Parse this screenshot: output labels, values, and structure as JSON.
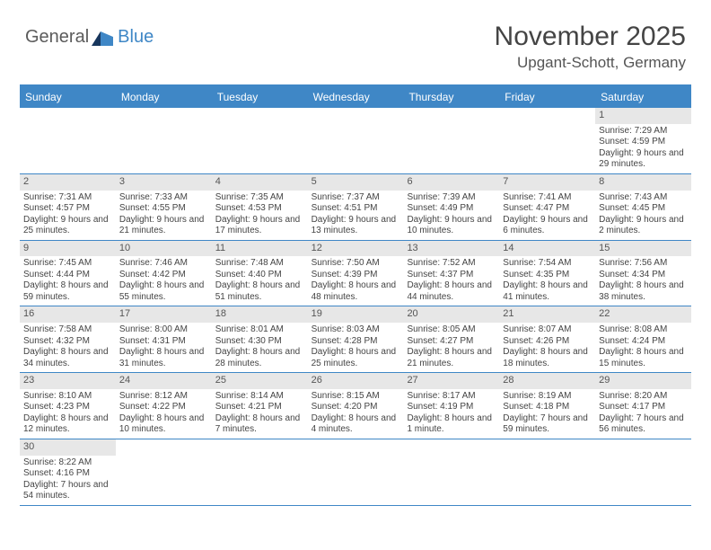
{
  "logo": {
    "textLeft": "General",
    "textRight": "Blue"
  },
  "title": "November 2025",
  "location": "Upgant-Schott, Germany",
  "colors": {
    "accent": "#3f87c6",
    "headerBg": "#3f87c6",
    "headerText": "#ffffff",
    "dayBarBg": "#e7e7e7",
    "bodyText": "#444444",
    "rowBorder": "#3f87c6"
  },
  "weekdays": [
    "Sunday",
    "Monday",
    "Tuesday",
    "Wednesday",
    "Thursday",
    "Friday",
    "Saturday"
  ],
  "weeks": [
    [
      null,
      null,
      null,
      null,
      null,
      null,
      {
        "n": "1",
        "sunrise": "Sunrise: 7:29 AM",
        "sunset": "Sunset: 4:59 PM",
        "daylight": "Daylight: 9 hours and 29 minutes."
      }
    ],
    [
      {
        "n": "2",
        "sunrise": "Sunrise: 7:31 AM",
        "sunset": "Sunset: 4:57 PM",
        "daylight": "Daylight: 9 hours and 25 minutes."
      },
      {
        "n": "3",
        "sunrise": "Sunrise: 7:33 AM",
        "sunset": "Sunset: 4:55 PM",
        "daylight": "Daylight: 9 hours and 21 minutes."
      },
      {
        "n": "4",
        "sunrise": "Sunrise: 7:35 AM",
        "sunset": "Sunset: 4:53 PM",
        "daylight": "Daylight: 9 hours and 17 minutes."
      },
      {
        "n": "5",
        "sunrise": "Sunrise: 7:37 AM",
        "sunset": "Sunset: 4:51 PM",
        "daylight": "Daylight: 9 hours and 13 minutes."
      },
      {
        "n": "6",
        "sunrise": "Sunrise: 7:39 AM",
        "sunset": "Sunset: 4:49 PM",
        "daylight": "Daylight: 9 hours and 10 minutes."
      },
      {
        "n": "7",
        "sunrise": "Sunrise: 7:41 AM",
        "sunset": "Sunset: 4:47 PM",
        "daylight": "Daylight: 9 hours and 6 minutes."
      },
      {
        "n": "8",
        "sunrise": "Sunrise: 7:43 AM",
        "sunset": "Sunset: 4:45 PM",
        "daylight": "Daylight: 9 hours and 2 minutes."
      }
    ],
    [
      {
        "n": "9",
        "sunrise": "Sunrise: 7:45 AM",
        "sunset": "Sunset: 4:44 PM",
        "daylight": "Daylight: 8 hours and 59 minutes."
      },
      {
        "n": "10",
        "sunrise": "Sunrise: 7:46 AM",
        "sunset": "Sunset: 4:42 PM",
        "daylight": "Daylight: 8 hours and 55 minutes."
      },
      {
        "n": "11",
        "sunrise": "Sunrise: 7:48 AM",
        "sunset": "Sunset: 4:40 PM",
        "daylight": "Daylight: 8 hours and 51 minutes."
      },
      {
        "n": "12",
        "sunrise": "Sunrise: 7:50 AM",
        "sunset": "Sunset: 4:39 PM",
        "daylight": "Daylight: 8 hours and 48 minutes."
      },
      {
        "n": "13",
        "sunrise": "Sunrise: 7:52 AM",
        "sunset": "Sunset: 4:37 PM",
        "daylight": "Daylight: 8 hours and 44 minutes."
      },
      {
        "n": "14",
        "sunrise": "Sunrise: 7:54 AM",
        "sunset": "Sunset: 4:35 PM",
        "daylight": "Daylight: 8 hours and 41 minutes."
      },
      {
        "n": "15",
        "sunrise": "Sunrise: 7:56 AM",
        "sunset": "Sunset: 4:34 PM",
        "daylight": "Daylight: 8 hours and 38 minutes."
      }
    ],
    [
      {
        "n": "16",
        "sunrise": "Sunrise: 7:58 AM",
        "sunset": "Sunset: 4:32 PM",
        "daylight": "Daylight: 8 hours and 34 minutes."
      },
      {
        "n": "17",
        "sunrise": "Sunrise: 8:00 AM",
        "sunset": "Sunset: 4:31 PM",
        "daylight": "Daylight: 8 hours and 31 minutes."
      },
      {
        "n": "18",
        "sunrise": "Sunrise: 8:01 AM",
        "sunset": "Sunset: 4:30 PM",
        "daylight": "Daylight: 8 hours and 28 minutes."
      },
      {
        "n": "19",
        "sunrise": "Sunrise: 8:03 AM",
        "sunset": "Sunset: 4:28 PM",
        "daylight": "Daylight: 8 hours and 25 minutes."
      },
      {
        "n": "20",
        "sunrise": "Sunrise: 8:05 AM",
        "sunset": "Sunset: 4:27 PM",
        "daylight": "Daylight: 8 hours and 21 minutes."
      },
      {
        "n": "21",
        "sunrise": "Sunrise: 8:07 AM",
        "sunset": "Sunset: 4:26 PM",
        "daylight": "Daylight: 8 hours and 18 minutes."
      },
      {
        "n": "22",
        "sunrise": "Sunrise: 8:08 AM",
        "sunset": "Sunset: 4:24 PM",
        "daylight": "Daylight: 8 hours and 15 minutes."
      }
    ],
    [
      {
        "n": "23",
        "sunrise": "Sunrise: 8:10 AM",
        "sunset": "Sunset: 4:23 PM",
        "daylight": "Daylight: 8 hours and 12 minutes."
      },
      {
        "n": "24",
        "sunrise": "Sunrise: 8:12 AM",
        "sunset": "Sunset: 4:22 PM",
        "daylight": "Daylight: 8 hours and 10 minutes."
      },
      {
        "n": "25",
        "sunrise": "Sunrise: 8:14 AM",
        "sunset": "Sunset: 4:21 PM",
        "daylight": "Daylight: 8 hours and 7 minutes."
      },
      {
        "n": "26",
        "sunrise": "Sunrise: 8:15 AM",
        "sunset": "Sunset: 4:20 PM",
        "daylight": "Daylight: 8 hours and 4 minutes."
      },
      {
        "n": "27",
        "sunrise": "Sunrise: 8:17 AM",
        "sunset": "Sunset: 4:19 PM",
        "daylight": "Daylight: 8 hours and 1 minute."
      },
      {
        "n": "28",
        "sunrise": "Sunrise: 8:19 AM",
        "sunset": "Sunset: 4:18 PM",
        "daylight": "Daylight: 7 hours and 59 minutes."
      },
      {
        "n": "29",
        "sunrise": "Sunrise: 8:20 AM",
        "sunset": "Sunset: 4:17 PM",
        "daylight": "Daylight: 7 hours and 56 minutes."
      }
    ],
    [
      {
        "n": "30",
        "sunrise": "Sunrise: 8:22 AM",
        "sunset": "Sunset: 4:16 PM",
        "daylight": "Daylight: 7 hours and 54 minutes."
      },
      null,
      null,
      null,
      null,
      null,
      null
    ]
  ]
}
